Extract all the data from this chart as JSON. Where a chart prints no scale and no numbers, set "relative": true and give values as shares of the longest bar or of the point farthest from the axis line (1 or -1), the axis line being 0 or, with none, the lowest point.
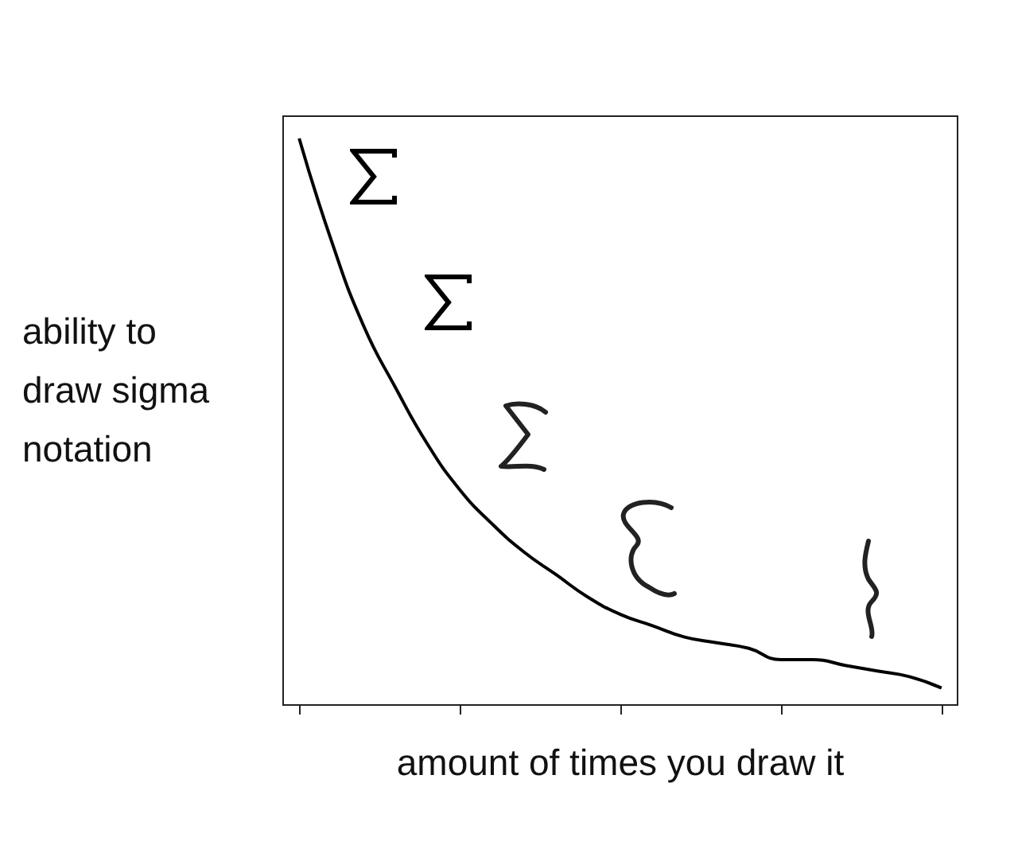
{
  "chart_data": {
    "type": "line",
    "xlabel": "amount of times you draw it",
    "ylabel": "ability to draw sigma notation",
    "categories": [
      null,
      null,
      null,
      null,
      null,
      null,
      null,
      null,
      null,
      null,
      null,
      null,
      null,
      null,
      null,
      null,
      null,
      null,
      null,
      null,
      null
    ],
    "values": [
      1.0,
      0.82,
      0.67,
      0.56,
      0.46,
      0.38,
      0.32,
      0.27,
      0.23,
      0.19,
      0.16,
      0.14,
      0.12,
      0.11,
      0.1,
      0.08,
      0.08,
      0.07,
      0.06,
      0.05,
      0.03
    ],
    "color": "#000000",
    "relative": true,
    "marker": "none",
    "line_style": "solid"
  }
}
